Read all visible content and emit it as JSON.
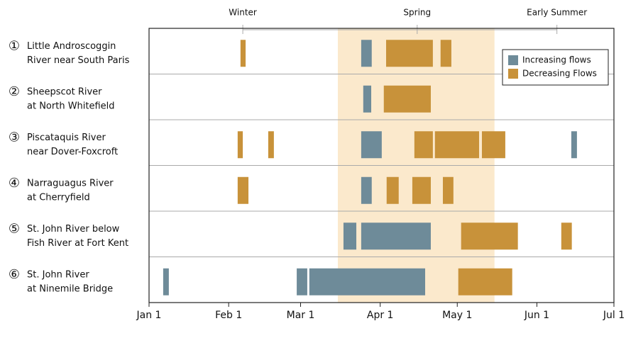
{
  "chart_data": {
    "type": "timeline",
    "season_labels": [
      {
        "label": "Winter",
        "x": 36.5
      },
      {
        "label": "Spring",
        "x": 104.4
      },
      {
        "label": "Early Summer",
        "x": 158.8
      }
    ],
    "highlight": {
      "start": 73.5,
      "end": 134.5,
      "color": "#fbe9cc"
    },
    "xlim": [
      0,
      181
    ],
    "xticks": [
      {
        "value": 0,
        "label": "Jan 1"
      },
      {
        "value": 31,
        "label": "Feb 1"
      },
      {
        "value": 59,
        "label": "Mar 1"
      },
      {
        "value": 90,
        "label": "Apr 1"
      },
      {
        "value": 120,
        "label": "May 1"
      },
      {
        "value": 151,
        "label": "Jun 1"
      },
      {
        "value": 181,
        "label": "Jul 1"
      }
    ],
    "series": [
      {
        "name": "Increasing flows",
        "color": "#6e8b99"
      },
      {
        "name": "Decreasing Flows",
        "color": "#c8923a"
      }
    ],
    "legend": "upper right",
    "rows": [
      {
        "number": "①",
        "label": [
          "Little Androscoggin",
          "River near South Paris"
        ],
        "bars": [
          {
            "series": 1,
            "start": 35.6,
            "end": 37.6
          },
          {
            "series": 0,
            "start": 82.6,
            "end": 86.7
          },
          {
            "series": 1,
            "start": 92.3,
            "end": 110.5
          },
          {
            "series": 1,
            "start": 113.5,
            "end": 117.7
          }
        ]
      },
      {
        "number": "②",
        "label": [
          "Sheepscot River",
          "at North Whitefield"
        ],
        "bars": [
          {
            "series": 0,
            "start": 83.4,
            "end": 86.5
          },
          {
            "series": 1,
            "start": 91.4,
            "end": 109.7
          }
        ]
      },
      {
        "number": "③",
        "label": [
          "Piscataquis River",
          "near Dover-Foxcroft"
        ],
        "bars": [
          {
            "series": 1,
            "start": 34.5,
            "end": 36.5
          },
          {
            "series": 1,
            "start": 46.4,
            "end": 48.6
          },
          {
            "series": 0,
            "start": 82.6,
            "end": 90.6
          },
          {
            "series": 1,
            "start": 103.3,
            "end": 110.5
          },
          {
            "series": 1,
            "start": 111.3,
            "end": 128.5
          },
          {
            "series": 1,
            "start": 129.6,
            "end": 138.7
          },
          {
            "series": 0,
            "start": 164.4,
            "end": 166.6
          }
        ]
      },
      {
        "number": "④",
        "label": [
          "Narraguagus River",
          "at Cherryfield"
        ],
        "bars": [
          {
            "series": 1,
            "start": 34.5,
            "end": 38.7
          },
          {
            "series": 0,
            "start": 82.6,
            "end": 86.7
          },
          {
            "series": 1,
            "start": 92.5,
            "end": 97.2
          },
          {
            "series": 1,
            "start": 102.5,
            "end": 109.7
          },
          {
            "series": 1,
            "start": 114.4,
            "end": 118.5
          }
        ]
      },
      {
        "number": "⑤",
        "label": [
          "St. John River below",
          "Fish River at Fort Kent"
        ],
        "bars": [
          {
            "series": 0,
            "start": 75.7,
            "end": 80.7
          },
          {
            "series": 0,
            "start": 82.6,
            "end": 109.7
          },
          {
            "series": 1,
            "start": 121.5,
            "end": 143.6
          },
          {
            "series": 1,
            "start": 160.5,
            "end": 164.6
          }
        ]
      },
      {
        "number": "⑥",
        "label": [
          "St. John River",
          "at Ninemile Bridge"
        ],
        "bars": [
          {
            "series": 0,
            "start": 5.5,
            "end": 7.7
          },
          {
            "series": 0,
            "start": 57.5,
            "end": 61.6
          },
          {
            "series": 0,
            "start": 62.4,
            "end": 107.5
          },
          {
            "series": 1,
            "start": 120.4,
            "end": 141.4
          }
        ]
      }
    ]
  }
}
